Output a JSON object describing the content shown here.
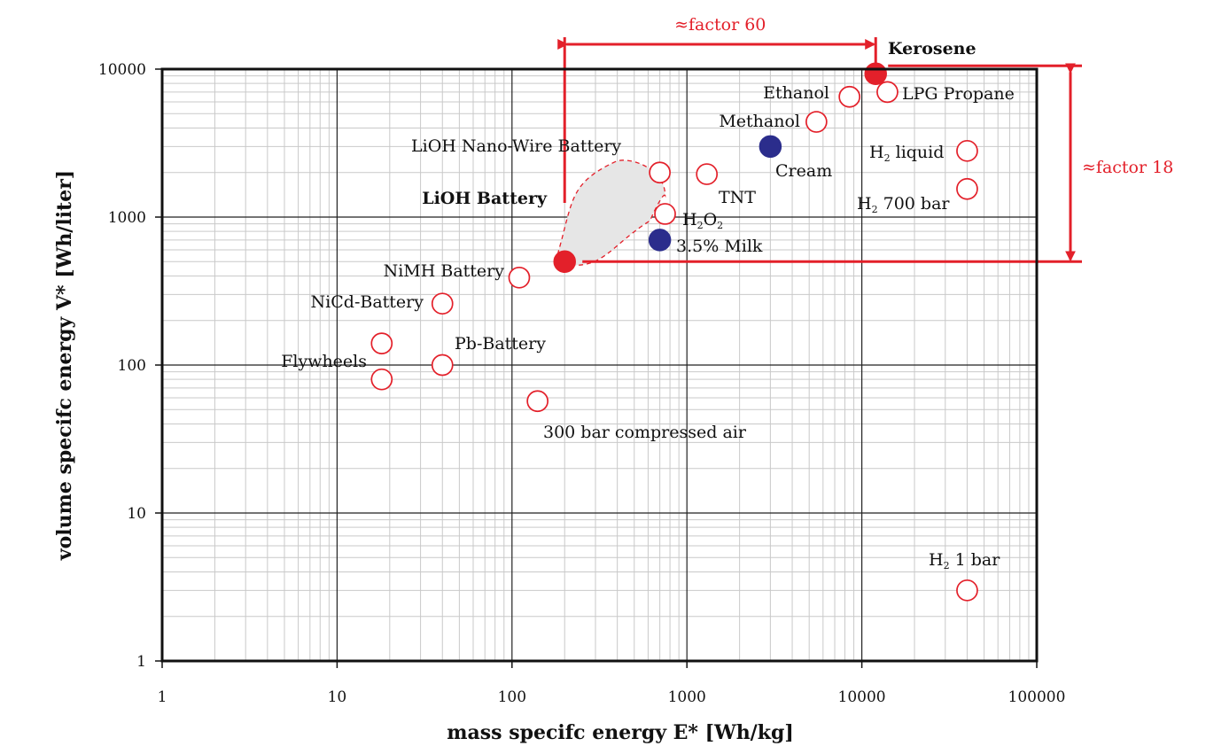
{
  "chart_data": {
    "type": "scatter",
    "title": "",
    "xlabel": "mass specifc energy E*  [Wh/kg]",
    "ylabel": "volume specifc energy V*  [Wh/liter]",
    "xscale": "log",
    "yscale": "log",
    "xlim": [
      1,
      100000
    ],
    "ylim": [
      1,
      10000
    ],
    "grid": true,
    "x_ticks": [
      "1",
      "10",
      "100",
      "1000",
      "10000",
      "100000"
    ],
    "y_ticks": [
      "1",
      "10",
      "100",
      "1000",
      "10000"
    ],
    "colors": {
      "red": "#e3202a",
      "blue": "#2b2d8c",
      "gray_fill": "#e6e6e6",
      "text": "#111111"
    },
    "points": [
      {
        "id": "kerosene",
        "label": "Kerosene",
        "x": 12000,
        "y": 9300,
        "marker": "filled",
        "color": "red",
        "bold": true
      },
      {
        "id": "lpg",
        "label": "LPG Propane",
        "x": 14000,
        "y": 7000,
        "marker": "open",
        "color": "red"
      },
      {
        "id": "ethanol",
        "label": "Ethanol",
        "x": 8500,
        "y": 6500,
        "marker": "open",
        "color": "red"
      },
      {
        "id": "methanol",
        "label": "Methanol",
        "x": 5500,
        "y": 4400,
        "marker": "open",
        "color": "red"
      },
      {
        "id": "cream",
        "label": "Cream",
        "x": 3000,
        "y": 3000,
        "marker": "filled",
        "color": "blue"
      },
      {
        "id": "h2liquid",
        "label": "liquid",
        "x": 40000,
        "y": 2800,
        "marker": "open",
        "color": "red"
      },
      {
        "id": "h2700",
        "label": "700 bar",
        "x": 40000,
        "y": 1550,
        "marker": "open",
        "color": "red"
      },
      {
        "id": "tnt",
        "label": "TNT",
        "x": 1300,
        "y": 1950,
        "marker": "open",
        "color": "red"
      },
      {
        "id": "nanowire",
        "label": "LiOH Nano-Wire Battery",
        "x": 700,
        "y": 2000,
        "marker": "open",
        "color": "red"
      },
      {
        "id": "h2o2",
        "label": "O",
        "x": 750,
        "y": 1050,
        "marker": "open",
        "color": "red"
      },
      {
        "id": "milk",
        "label": "3.5% Milk",
        "x": 700,
        "y": 700,
        "marker": "filled",
        "color": "blue"
      },
      {
        "id": "lioh",
        "label": "LiOH Battery",
        "x": 200,
        "y": 500,
        "marker": "filled",
        "color": "red",
        "bold": true
      },
      {
        "id": "nimh",
        "label": "NiMH Battery",
        "x": 110,
        "y": 390,
        "marker": "open",
        "color": "red"
      },
      {
        "id": "nicd",
        "label": "NiCd-Battery",
        "x": 40,
        "y": 260,
        "marker": "open",
        "color": "red"
      },
      {
        "id": "fly1",
        "label": "",
        "x": 18,
        "y": 140,
        "marker": "open",
        "color": "red"
      },
      {
        "id": "fly2",
        "label": "Flywheels",
        "x": 18,
        "y": 80,
        "marker": "open",
        "color": "red"
      },
      {
        "id": "pb",
        "label": "Pb-Battery",
        "x": 40,
        "y": 100,
        "marker": "open",
        "color": "red"
      },
      {
        "id": "air",
        "label": "300 bar compressed air",
        "x": 140,
        "y": 57,
        "marker": "open",
        "color": "red"
      },
      {
        "id": "h21bar",
        "label": "1 bar",
        "x": 40000,
        "y": 3,
        "marker": "open",
        "color": "red"
      }
    ],
    "chem_labels": {
      "h2_prefix": "H",
      "h2_subscript": "2",
      "h2o2_main": "H",
      "h2o2_sub": "2"
    },
    "annotations": {
      "factor_x": "≈factor 60",
      "factor_y": "≈factor 18"
    }
  }
}
